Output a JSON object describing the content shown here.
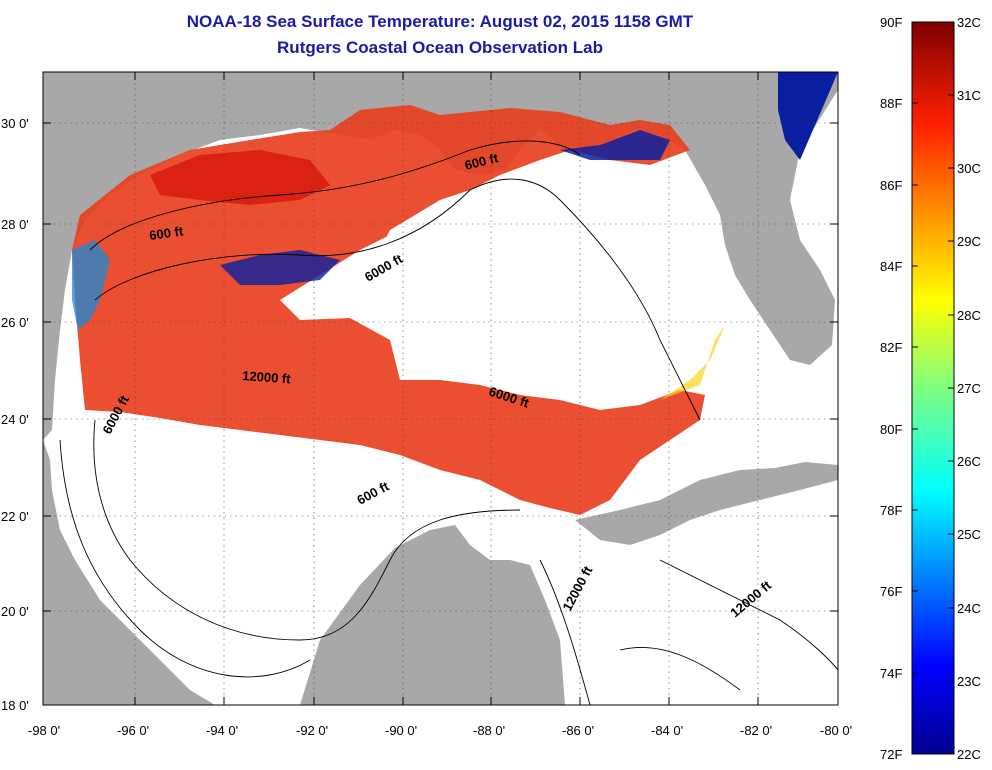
{
  "title": {
    "line1": "NOAA-18 Sea Surface Temperature:  August 02, 2015 1158 GMT",
    "line2": "Rutgers Coastal Ocean Observation Lab"
  },
  "axes": {
    "lat_labels": [
      "30 0'",
      "28 0'",
      "26 0'",
      "24 0'",
      "22 0'",
      "20 0'",
      "18 0'"
    ],
    "lon_labels": [
      "-98 0'",
      "-96 0'",
      "-94 0'",
      "-92 0'",
      "-90 0'",
      "-88 0'",
      "-86 0'",
      "-84 0'",
      "-82 0'",
      "-80 0'"
    ]
  },
  "contours": {
    "c600_upper": "600 ft",
    "c600_east": "600 ft",
    "c600_south": "600 ft",
    "c6000_north": "6000 ft",
    "c6000_west": "6000 ft",
    "c6000_east": "6000 ft",
    "c12000_central": "12000 ft",
    "c12000_south": "12000 ft",
    "c12000_se": "12000 ft"
  },
  "colorbar": {
    "fahrenheit": [
      "90F",
      "88F",
      "86F",
      "84F",
      "82F",
      "80F",
      "78F",
      "76F",
      "74F",
      "72F"
    ],
    "celsius": [
      "32C",
      "31C",
      "30C",
      "29C",
      "28C",
      "27C",
      "26C",
      "25C",
      "24C",
      "23C",
      "22C"
    ]
  },
  "colors": {
    "land": "#a8a8a8",
    "title": "#1a1aa6",
    "warm": "#e8321e",
    "cool": "#0a1fa0"
  }
}
